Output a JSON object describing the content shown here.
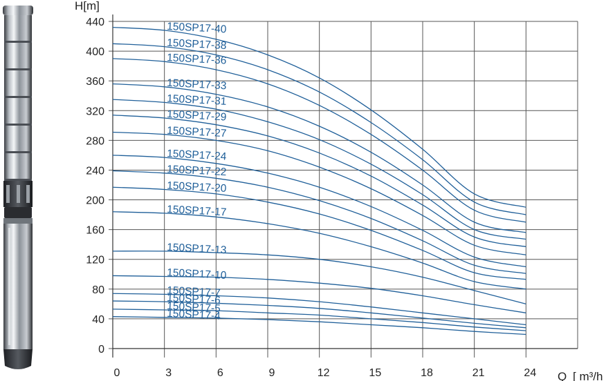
{
  "chart_data": {
    "type": "line",
    "ylabel": "H[m]",
    "xlabel_prefix": "Q",
    "xlabel_suffix": "m³/h",
    "x_ticks": [
      0,
      3,
      6,
      9,
      12,
      15,
      18,
      21,
      24
    ],
    "y_ticks": [
      0,
      40,
      80,
      120,
      160,
      200,
      240,
      280,
      320,
      360,
      400,
      440
    ],
    "xlim": [
      0,
      27
    ],
    "ylim": [
      0,
      440
    ],
    "grid": true,
    "line_color": "#1f5f99",
    "x": [
      0,
      3,
      6,
      9,
      12,
      15,
      18,
      21,
      24
    ],
    "series": [
      {
        "name": "150SP17-40",
        "values": [
          432,
          428,
          416,
          395,
          364,
          321,
          268,
          208,
          190
        ]
      },
      {
        "name": "150SP17-38",
        "values": [
          410,
          406,
          395,
          375,
          345,
          304,
          254,
          197,
          180
        ]
      },
      {
        "name": "150SP17-36",
        "values": [
          390,
          386,
          375,
          356,
          327,
          288,
          240,
          186,
          170
        ]
      },
      {
        "name": "150SP17-33",
        "values": [
          356,
          352,
          342,
          325,
          299,
          264,
          220,
          170,
          156
        ]
      },
      {
        "name": "150SP17-31",
        "values": [
          335,
          331,
          322,
          305,
          281,
          248,
          207,
          160,
          147
        ]
      },
      {
        "name": "150SP17-29",
        "values": [
          314,
          310,
          301,
          286,
          263,
          232,
          193,
          150,
          137
        ]
      },
      {
        "name": "150SP17-27",
        "values": [
          291,
          288,
          280,
          266,
          244,
          215,
          179,
          139,
          126
        ]
      },
      {
        "name": "150SP17-24",
        "values": [
          260,
          257,
          249,
          236,
          217,
          191,
          159,
          123,
          110
        ]
      },
      {
        "name": "150SP17-22",
        "values": [
          239,
          236,
          229,
          217,
          199,
          175,
          145,
          112,
          101
        ]
      },
      {
        "name": "150SP17-20",
        "values": [
          217,
          214,
          208,
          197,
          181,
          159,
          132,
          102,
          93
        ]
      },
      {
        "name": "150SP17-17",
        "values": [
          184,
          182,
          177,
          168,
          155,
          137,
          115,
          90,
          80
        ]
      },
      {
        "name": "150SP17-13",
        "values": [
          131,
          131,
          129,
          126,
          120,
          110,
          96,
          78,
          60
        ]
      },
      {
        "name": "150SP17-10",
        "values": [
          98,
          97,
          96,
          93,
          88,
          81,
          71,
          59,
          48
        ]
      },
      {
        "name": "150SP17-7",
        "values": [
          74,
          73,
          71,
          68,
          63,
          56,
          48,
          40,
          32
        ]
      },
      {
        "name": "150SP17-6",
        "values": [
          64,
          63,
          61,
          58,
          54,
          48,
          41,
          34,
          28
        ]
      },
      {
        "name": "150SP17-5",
        "values": [
          53,
          52,
          51,
          48,
          45,
          40,
          35,
          29,
          24
        ]
      },
      {
        "name": "150SP17-4",
        "values": [
          43,
          42,
          41,
          39,
          36,
          32,
          28,
          23,
          19
        ]
      }
    ]
  }
}
